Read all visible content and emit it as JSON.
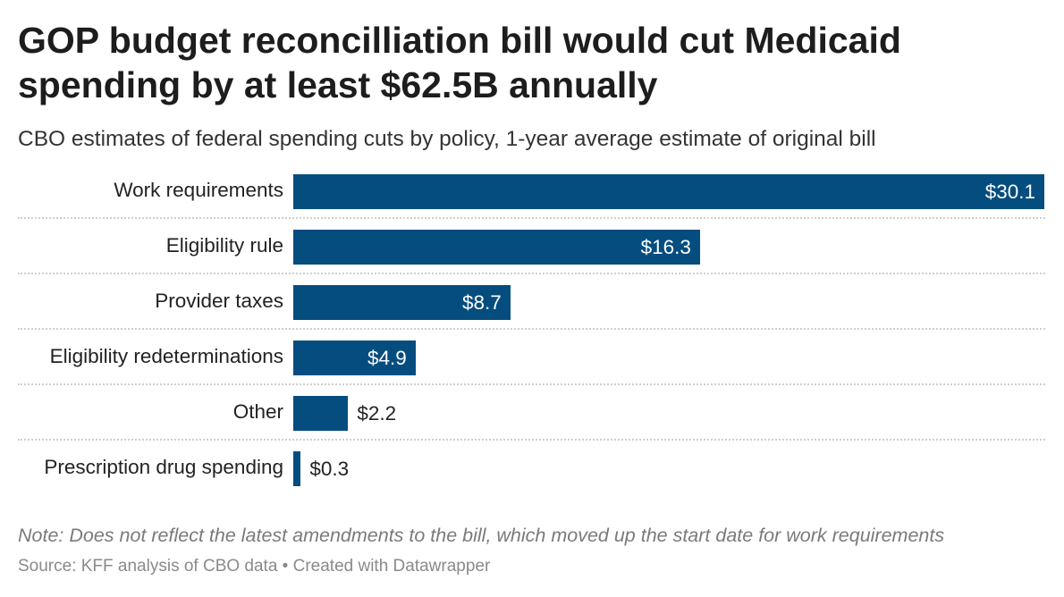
{
  "chart_data": {
    "type": "bar",
    "orientation": "horizontal",
    "title": "GOP budget reconcilliation bill would cut Medicaid spending by at least $62.5B annually",
    "subtitle": "CBO estimates of federal spending cuts by policy, 1-year average estimate of original bill",
    "categories": [
      "Work requirements",
      "Eligibility rule",
      "Provider taxes",
      "Eligibility redeterminations",
      "Other",
      "Prescription drug spending"
    ],
    "values": [
      30.1,
      16.3,
      8.7,
      4.9,
      2.2,
      0.3
    ],
    "value_labels": [
      "$30.1",
      "$16.3",
      "$8.7",
      "$4.9",
      "$2.2",
      "$0.3"
    ],
    "xlim": [
      0,
      30.1
    ],
    "grid": false,
    "bar_color": "#054d7f",
    "note": "Note: Does not reflect the latest amendments to the bill, which moved up the start date for work requirements",
    "source": "Source: KFF analysis of CBO data • Created with Datawrapper"
  }
}
